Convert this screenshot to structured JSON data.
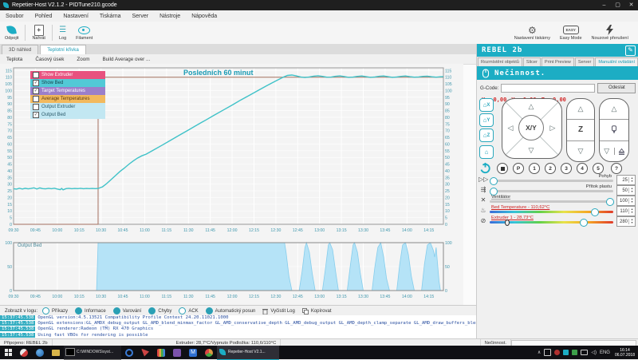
{
  "window": {
    "title": "Repetier-Host V2.1.2 - PIDTune210.gcode",
    "controls": {
      "minimize": "–",
      "maximize": "▢",
      "close": "✕"
    }
  },
  "menu": {
    "items": [
      "Soubor",
      "Pohled",
      "Nastavení",
      "Tiskárna",
      "Server",
      "Nástroje",
      "Nápověda"
    ]
  },
  "toolbar": {
    "connect": "Odpojit",
    "load": "Nahrát",
    "log": "Log",
    "filament": "Filament",
    "printer_settings": "Nastavení tiskárny",
    "easy_mode": "Easy Mode",
    "easy_badge": "EASY",
    "emergency": "Nouzové přerušení"
  },
  "doc_tabs": {
    "preview": "3D náhled",
    "temperature": "Teplotní křivka"
  },
  "chart_menu": {
    "items": [
      "Teplota",
      "Časový úsek",
      "Zoom",
      "Build Average over ..."
    ]
  },
  "legend": [
    {
      "label": "Show Extruder",
      "checked": false,
      "color": "#e8527f",
      "text": "#ffffff"
    },
    {
      "label": "Show Bed",
      "checked": true,
      "color": "#52c9d6",
      "text": "#17434c"
    },
    {
      "label": "Target Temperatures",
      "checked": true,
      "color": "#9b7fca",
      "text": "#ffffff"
    },
    {
      "label": "Average Temperatures",
      "checked": false,
      "color": "#f2b95e",
      "text": "#5a3a10"
    },
    {
      "label": "Output Extruder",
      "checked": false,
      "color": "#c2e7f2",
      "text": "#2a5a6a"
    },
    {
      "label": "Output Bed",
      "checked": true,
      "color": "#c2e7f2",
      "text": "#2a5a6a"
    }
  ],
  "chart_data": [
    {
      "type": "line",
      "title": "Posledních 60 minut",
      "xlabel": "time",
      "ylabel": "°C",
      "ylim": [
        0,
        117
      ],
      "y_tick_step": 5,
      "x_range_minutes": [
        0,
        295
      ],
      "x_ticks": [
        "09:30",
        "09:45",
        "10:00",
        "10:15",
        "10:30",
        "10:45",
        "11:00",
        "11:15",
        "11:30",
        "11:45",
        "12:00",
        "12:15",
        "12:30",
        "12:45",
        "13:00",
        "13:15",
        "13:30",
        "13:45",
        "14:00",
        "14:15"
      ],
      "grid": true,
      "series": [
        {
          "name": "Bed",
          "color": "#3fc2c8",
          "points": [
            [
              0,
              26.6
            ],
            [
              2,
              26.3
            ],
            [
              4,
              27.0
            ],
            [
              6,
              26.4
            ],
            [
              8,
              26.9
            ],
            [
              10,
              26.5
            ],
            [
              12,
              26.8
            ],
            [
              14,
              27.3
            ],
            [
              16,
              26.4
            ],
            [
              18,
              27.2
            ],
            [
              20,
              26.7
            ],
            [
              22,
              26.5
            ],
            [
              24,
              26.9
            ],
            [
              26,
              26.6
            ],
            [
              28,
              27.0
            ],
            [
              30,
              26.4
            ],
            [
              32,
              25.9
            ],
            [
              33,
              26.8
            ],
            [
              34,
              25.8
            ],
            [
              36,
              26.7
            ],
            [
              38,
              26.9
            ],
            [
              40,
              26.6
            ],
            [
              42,
              26.8
            ],
            [
              44,
              26.7
            ],
            [
              46,
              26.9
            ],
            [
              48,
              26.6
            ],
            [
              50,
              26.8
            ],
            [
              52,
              26.7
            ],
            [
              54,
              26.8
            ],
            [
              56,
              26.7
            ],
            [
              58,
              26.8
            ],
            [
              61,
              28.0
            ],
            [
              64,
              30.5
            ],
            [
              67,
              33.5
            ],
            [
              70,
              36.5
            ],
            [
              73,
              39.5
            ],
            [
              76,
              42.0
            ],
            [
              79,
              44.8
            ],
            [
              82,
              47.3
            ],
            [
              85,
              49.5
            ],
            [
              88,
              51.2
            ],
            [
              91,
              52.5
            ],
            [
              96,
              55.5
            ],
            [
              102,
              59.2
            ],
            [
              108,
              63.0
            ],
            [
              114,
              66.8
            ],
            [
              120,
              70.5
            ],
            [
              126,
              74.3
            ],
            [
              132,
              78.0
            ],
            [
              138,
              81.8
            ],
            [
              144,
              85.5
            ],
            [
              150,
              89.2
            ],
            [
              156,
              93.0
            ],
            [
              162,
              96.6
            ],
            [
              168,
              100.2
            ],
            [
              174,
              103.8
            ],
            [
              180,
              107.2
            ],
            [
              185,
              110.0
            ],
            [
              188,
              111.3
            ],
            [
              191,
              111.6
            ],
            [
              194,
              111.0
            ],
            [
              197,
              110.2
            ],
            [
              200,
              109.8
            ],
            [
              203,
              110.2
            ],
            [
              206,
              110.8
            ],
            [
              209,
              111.1
            ],
            [
              212,
              110.6
            ],
            [
              215,
              110.0
            ],
            [
              218,
              110.1
            ],
            [
              221,
              110.7
            ],
            [
              224,
              111.0
            ],
            [
              227,
              110.5
            ],
            [
              230,
              109.9
            ],
            [
              233,
              110.1
            ],
            [
              236,
              110.6
            ],
            [
              239,
              110.9
            ],
            [
              242,
              110.4
            ],
            [
              245,
              109.9
            ],
            [
              248,
              110.2
            ],
            [
              251,
              110.7
            ],
            [
              254,
              110.9
            ],
            [
              257,
              110.4
            ],
            [
              260,
              109.9
            ],
            [
              263,
              110.2
            ],
            [
              266,
              110.6
            ],
            [
              269,
              110.9
            ],
            [
              272,
              110.4
            ],
            [
              275,
              110.0
            ],
            [
              278,
              110.2
            ],
            [
              281,
              110.6
            ],
            [
              284,
              110.8
            ],
            [
              287,
              110.3
            ],
            [
              290,
              110.0
            ],
            [
              293,
              110.3
            ],
            [
              295,
              110.4
            ]
          ]
        },
        {
          "name": "Target Temperature Bed",
          "color": "#a3705f",
          "points": [
            [
              0,
              0
            ],
            [
              58,
              0
            ],
            [
              58,
              110
            ],
            [
              295,
              110
            ]
          ]
        }
      ]
    },
    {
      "type": "area",
      "title": "Output Bed",
      "ylim": [
        0,
        100
      ],
      "y_ticks": [
        0,
        50,
        100
      ],
      "x_range_minutes": [
        0,
        295
      ],
      "x_ticks": [
        "09:30",
        "09:45",
        "10:00",
        "10:15",
        "10:30",
        "10:45",
        "11:00",
        "11:15",
        "11:30",
        "11:45",
        "12:00",
        "12:15",
        "12:30",
        "12:45",
        "13:00",
        "13:15",
        "13:30",
        "13:45",
        "14:00",
        "14:15"
      ],
      "grid": true,
      "series": [
        {
          "name": "Output Bed",
          "color": "#b5e3f7",
          "stroke": "#85cdec",
          "points": [
            [
              0,
              0
            ],
            [
              57,
              0
            ],
            [
              58,
              100
            ],
            [
              186,
              100
            ],
            [
              187,
              80
            ],
            [
              189,
              30
            ],
            [
              191,
              0
            ],
            [
              196,
              0
            ],
            [
              198,
              40
            ],
            [
              200,
              90
            ],
            [
              201,
              100
            ],
            [
              203,
              80
            ],
            [
              205,
              35
            ],
            [
              207,
              0
            ],
            [
              212,
              0
            ],
            [
              214,
              45
            ],
            [
              216,
              95
            ],
            [
              217,
              100
            ],
            [
              219,
              85
            ],
            [
              221,
              40
            ],
            [
              223,
              0
            ],
            [
              229,
              0
            ],
            [
              231,
              50
            ],
            [
              233,
              95
            ],
            [
              234,
              100
            ],
            [
              236,
              80
            ],
            [
              238,
              35
            ],
            [
              240,
              0
            ],
            [
              246,
              0
            ],
            [
              248,
              50
            ],
            [
              250,
              90
            ],
            [
              252,
              100
            ],
            [
              254,
              70
            ],
            [
              256,
              25
            ],
            [
              258,
              0
            ],
            [
              263,
              0
            ],
            [
              265,
              55
            ],
            [
              267,
              95
            ],
            [
              269,
              100
            ],
            [
              271,
              75
            ],
            [
              273,
              30
            ],
            [
              275,
              0
            ],
            [
              280,
              0
            ],
            [
              282,
              55
            ],
            [
              284,
              95
            ],
            [
              286,
              100
            ],
            [
              288,
              85
            ],
            [
              289,
              70
            ],
            [
              290,
              90
            ],
            [
              291,
              55
            ],
            [
              292,
              20
            ],
            [
              293,
              0
            ],
            [
              295,
              0
            ]
          ]
        }
      ]
    }
  ],
  "log_toolbar": {
    "label": "Zobrazit v logu:",
    "toggles": [
      {
        "label": "Příkazy",
        "on": false
      },
      {
        "label": "Informace",
        "on": true
      },
      {
        "label": "Varování",
        "on": true
      },
      {
        "label": "Chyby",
        "on": true
      },
      {
        "label": "ACK",
        "on": false
      },
      {
        "label": "Automatický posun",
        "on": true
      }
    ],
    "clear": "Vyčistit Log",
    "copy": "Kopírovat"
  },
  "log": {
    "lines": [
      {
        "time": "15:37:45.538",
        "text": "OpenGL version:4.5.13521 Compatibility Profile Context 24.20.11021.1000"
      },
      {
        "time": "15:37:45.538",
        "text": "OpenGL extensions:GL_AMDX_debug_output GL_AMD_blend_minmax_factor GL_AMD_conservative_depth GL_AMD_debug_output GL_AMD_depth_clamp_separate GL_AMD_draw_buffers_blend GL_AMD_framebuffer_sample_positions GL_AMD_gcn_shader GL_AMD_gpu_shader_half"
      },
      {
        "time": "15:37:45.538",
        "text": "OpenGL renderer:Radeon (TM) RX 470 Graphics"
      },
      {
        "time": "15:37:45.538",
        "text": "Using fast VBOs for rendering is possible"
      }
    ]
  },
  "panel": {
    "printer_name": "REBEL 2b",
    "tabs": [
      "Rozmístění objektů",
      "Slicer",
      "Print Preview",
      "Server",
      "Manuální ovládání"
    ],
    "status": "Nečinnost.",
    "gcode_label": "G-Code:",
    "send_button": "Odeslat",
    "position": {
      "x_label": "X:",
      "x": "0,00",
      "y_label": "Y:",
      "y": "0,00",
      "z_label": "Z:",
      "z": "0,00"
    },
    "jog": {
      "home_x": "X",
      "home_y": "Y",
      "home_z": "Z",
      "center": "X/Y",
      "z_label": "Z"
    },
    "quick_buttons": [
      "P",
      "1",
      "2",
      "3",
      "4",
      "5",
      "?"
    ],
    "sliders": [
      {
        "label": "Pohyb",
        "value": "25"
      },
      {
        "label": "Přítok plastu",
        "value": "50"
      },
      {
        "label": "Ventilátor",
        "value": "100"
      },
      {
        "label": "Bed Temperature - 110,62°C",
        "value": "110"
      },
      {
        "label": "Extruder 1 - 28,73°C",
        "value": "280"
      }
    ]
  },
  "statusbar": {
    "left": "Připojeno: REBEL 2b",
    "center": "Extruder: 28,7°C/Vypnuto Podložka: 110,6/110°C",
    "right": "Nečinnost."
  },
  "taskbar": {
    "cmd_label": "C:\\WINDOWS\\syst...",
    "active_app": "Repetier-Host V2.1...",
    "lang": "ENG",
    "time": "16:14",
    "date": "06.07.2018"
  }
}
